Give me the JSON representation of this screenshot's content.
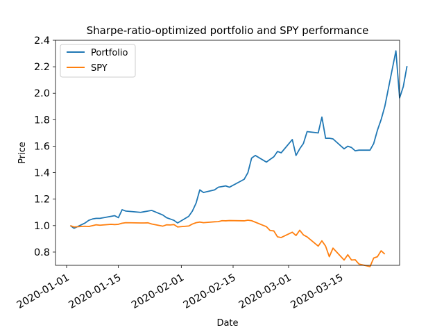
{
  "chart_data": {
    "type": "line",
    "title": "Sharpe-ratio-optimized portfolio and SPY performance",
    "xlabel": "Date",
    "ylabel": "Price",
    "xlim": [
      "2019-12-29",
      "2020-03-31"
    ],
    "ylim": [
      0.7,
      2.4
    ],
    "x_ticks": [
      "2020-01-01",
      "2020-01-15",
      "2020-02-01",
      "2020-02-15",
      "2020-03-01",
      "2020-03-15"
    ],
    "y_ticks": [
      "2.4",
      "2.2",
      "2.0",
      "1.8",
      "1.6",
      "1.4",
      "1.2",
      "1.0",
      "0.8"
    ],
    "y_tick_values": [
      2.4,
      2.2,
      2.0,
      1.8,
      1.6,
      1.4,
      1.2,
      1.0,
      0.8
    ],
    "grid": false,
    "legend_position": "top-left",
    "series": [
      {
        "name": "Portfolio",
        "color": "#1f77b4",
        "points": [
          [
            "2020-01-02",
            1.0
          ],
          [
            "2020-01-03",
            0.98
          ],
          [
            "2020-01-06",
            1.02
          ],
          [
            "2020-01-07",
            1.04
          ],
          [
            "2020-01-08",
            1.05
          ],
          [
            "2020-01-09",
            1.055
          ],
          [
            "2020-01-10",
            1.055
          ],
          [
            "2020-01-13",
            1.07
          ],
          [
            "2020-01-14",
            1.075
          ],
          [
            "2020-01-15",
            1.06
          ],
          [
            "2020-01-16",
            1.12
          ],
          [
            "2020-01-17",
            1.11
          ],
          [
            "2020-01-21",
            1.1
          ],
          [
            "2020-01-22",
            1.105
          ],
          [
            "2020-01-23",
            1.11
          ],
          [
            "2020-01-24",
            1.115
          ],
          [
            "2020-01-27",
            1.08
          ],
          [
            "2020-01-28",
            1.06
          ],
          [
            "2020-01-29",
            1.05
          ],
          [
            "2020-01-30",
            1.04
          ],
          [
            "2020-01-31",
            1.02
          ],
          [
            "2020-02-03",
            1.07
          ],
          [
            "2020-02-04",
            1.11
          ],
          [
            "2020-02-05",
            1.17
          ],
          [
            "2020-02-06",
            1.27
          ],
          [
            "2020-02-07",
            1.25
          ],
          [
            "2020-02-10",
            1.27
          ],
          [
            "2020-02-11",
            1.29
          ],
          [
            "2020-02-12",
            1.295
          ],
          [
            "2020-02-13",
            1.3
          ],
          [
            "2020-02-14",
            1.29
          ],
          [
            "2020-02-18",
            1.35
          ],
          [
            "2020-02-19",
            1.4
          ],
          [
            "2020-02-20",
            1.51
          ],
          [
            "2020-02-21",
            1.53
          ],
          [
            "2020-02-24",
            1.48
          ],
          [
            "2020-02-25",
            1.5
          ],
          [
            "2020-02-26",
            1.52
          ],
          [
            "2020-02-27",
            1.56
          ],
          [
            "2020-02-28",
            1.55
          ],
          [
            "2020-03-02",
            1.65
          ],
          [
            "2020-03-03",
            1.53
          ],
          [
            "2020-03-04",
            1.58
          ],
          [
            "2020-03-05",
            1.62
          ],
          [
            "2020-03-06",
            1.71
          ],
          [
            "2020-03-09",
            1.7
          ],
          [
            "2020-03-10",
            1.82
          ],
          [
            "2020-03-11",
            1.66
          ],
          [
            "2020-03-12",
            1.66
          ],
          [
            "2020-03-13",
            1.655
          ],
          [
            "2020-03-16",
            1.58
          ],
          [
            "2020-03-17",
            1.6
          ],
          [
            "2020-03-18",
            1.59
          ],
          [
            "2020-03-19",
            1.565
          ],
          [
            "2020-03-20",
            1.57
          ],
          [
            "2020-03-23",
            1.57
          ],
          [
            "2020-03-24",
            1.62
          ],
          [
            "2020-03-25",
            1.72
          ],
          [
            "2020-03-26",
            1.8
          ],
          [
            "2020-03-27",
            1.9
          ],
          [
            "2020-03-30",
            2.32
          ],
          [
            "2020-03-31",
            1.965
          ],
          [
            "2020-04-01",
            2.05
          ],
          [
            "2020-04-02",
            2.205
          ]
        ]
      },
      {
        "name": "SPY",
        "color": "#ff7f0e",
        "points": [
          [
            "2020-01-02",
            1.0
          ],
          [
            "2020-01-03",
            0.99
          ],
          [
            "2020-01-06",
            0.995
          ],
          [
            "2020-01-07",
            0.993
          ],
          [
            "2020-01-08",
            1.0
          ],
          [
            "2020-01-09",
            1.006
          ],
          [
            "2020-01-10",
            1.003
          ],
          [
            "2020-01-13",
            1.01
          ],
          [
            "2020-01-14",
            1.008
          ],
          [
            "2020-01-15",
            1.01
          ],
          [
            "2020-01-16",
            1.018
          ],
          [
            "2020-01-17",
            1.022
          ],
          [
            "2020-01-21",
            1.02
          ],
          [
            "2020-01-22",
            1.02
          ],
          [
            "2020-01-23",
            1.021
          ],
          [
            "2020-01-24",
            1.012
          ],
          [
            "2020-01-27",
            0.996
          ],
          [
            "2020-01-28",
            1.006
          ],
          [
            "2020-01-29",
            1.005
          ],
          [
            "2020-01-30",
            1.008
          ],
          [
            "2020-01-31",
            0.99
          ],
          [
            "2020-02-03",
            0.997
          ],
          [
            "2020-02-04",
            1.012
          ],
          [
            "2020-02-05",
            1.022
          ],
          [
            "2020-02-06",
            1.027
          ],
          [
            "2020-02-07",
            1.022
          ],
          [
            "2020-02-10",
            1.029
          ],
          [
            "2020-02-11",
            1.03
          ],
          [
            "2020-02-12",
            1.037
          ],
          [
            "2020-02-13",
            1.036
          ],
          [
            "2020-02-14",
            1.038
          ],
          [
            "2020-02-18",
            1.036
          ],
          [
            "2020-02-19",
            1.041
          ],
          [
            "2020-02-20",
            1.037
          ],
          [
            "2020-02-21",
            1.026
          ],
          [
            "2020-02-24",
            0.992
          ],
          [
            "2020-02-25",
            0.963
          ],
          [
            "2020-02-26",
            0.96
          ],
          [
            "2020-02-27",
            0.915
          ],
          [
            "2020-02-28",
            0.91
          ],
          [
            "2020-03-02",
            0.95
          ],
          [
            "2020-03-03",
            0.925
          ],
          [
            "2020-03-04",
            0.965
          ],
          [
            "2020-03-05",
            0.93
          ],
          [
            "2020-03-06",
            0.915
          ],
          [
            "2020-03-09",
            0.845
          ],
          [
            "2020-03-10",
            0.885
          ],
          [
            "2020-03-11",
            0.845
          ],
          [
            "2020-03-12",
            0.765
          ],
          [
            "2020-03-13",
            0.83
          ],
          [
            "2020-03-16",
            0.74
          ],
          [
            "2020-03-17",
            0.78
          ],
          [
            "2020-03-18",
            0.74
          ],
          [
            "2020-03-19",
            0.742
          ],
          [
            "2020-03-20",
            0.71
          ],
          [
            "2020-03-23",
            0.69
          ],
          [
            "2020-03-24",
            0.755
          ],
          [
            "2020-03-25",
            0.765
          ],
          [
            "2020-03-26",
            0.81
          ],
          [
            "2020-03-27",
            0.785
          ]
        ]
      }
    ]
  }
}
